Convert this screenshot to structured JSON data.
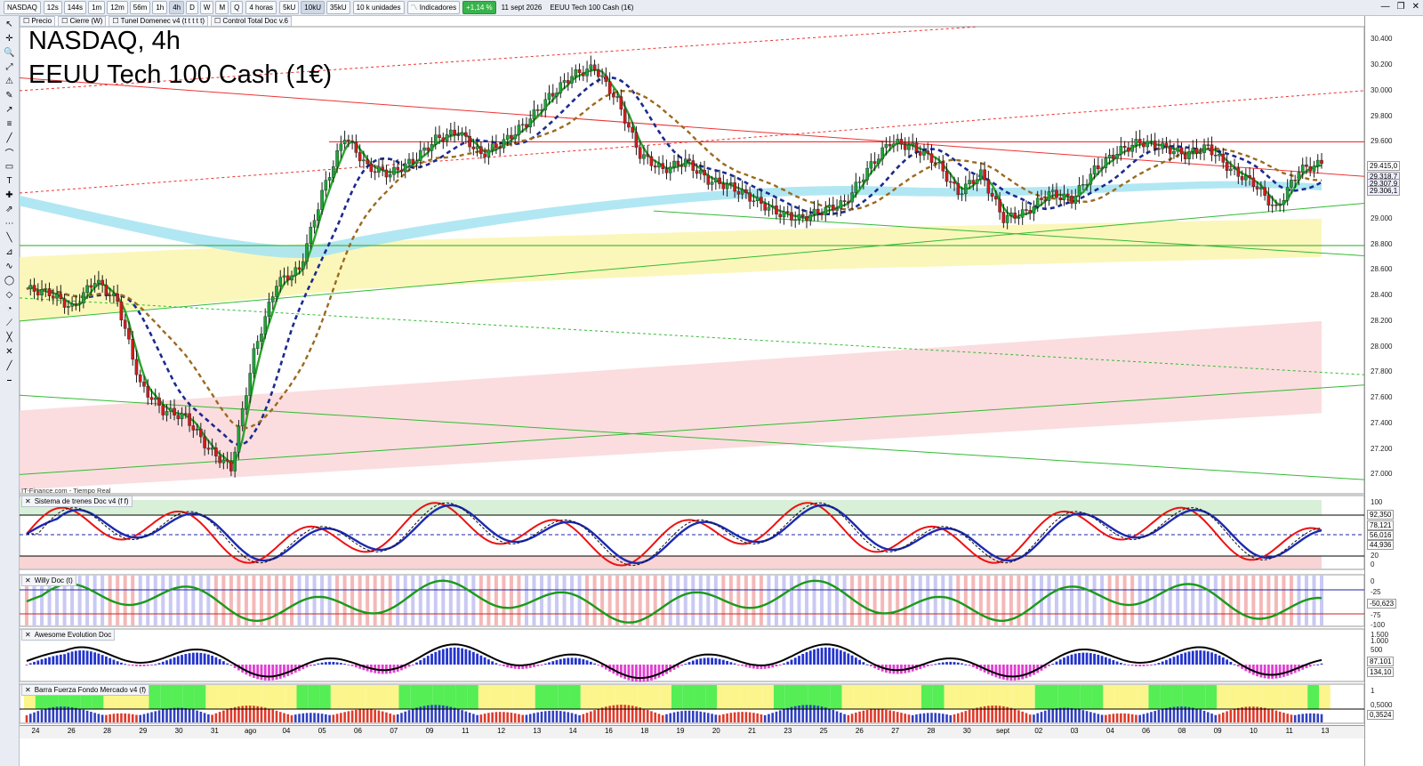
{
  "toolbar": {
    "symbol": "NASDAQ",
    "timeframes": [
      "12s",
      "144s",
      "1m",
      "12m",
      "56m",
      "1h",
      "4h",
      "D",
      "W",
      "M",
      "Q"
    ],
    "active_timeframe": "4h",
    "period": "4 horas",
    "volumes": [
      "5kU",
      "10kU",
      "35kU"
    ],
    "volume_active": "10kU",
    "units": "10 k unidades",
    "indicators_label": "Indicadores",
    "change_badge": "+1,14 %",
    "date": "11 sept 2026",
    "instrument": "EEUU Tech 100 Cash (1€)"
  },
  "legend": [
    "Precio",
    "Cierre (W)",
    "Tunel Domenec v4 (t t t t t)",
    "Control Total Doc v.6"
  ],
  "title_line1": "NASDAQ, 4h",
  "title_line2": "EEUU Tech 100 Cash (1€)",
  "credit": "IT-Finance.com - Tiempo Real",
  "panes": {
    "trenes": "Sistema de trenes Doc v4 (f f)",
    "willy": "Willy Doc (t)",
    "awesome": "Awesome Evolution Doc",
    "barra": "Barra Fuerza Fondo Mercado v4 (f)"
  },
  "price_ticks": [
    "30.400",
    "30.200",
    "30.000",
    "29.800",
    "29.600",
    "29.400",
    "29.200",
    "29.000",
    "28.800",
    "28.600",
    "28.400",
    "28.200",
    "28.000",
    "27.800",
    "27.600",
    "27.400",
    "27.200",
    "27.000"
  ],
  "price_tags": [
    "29.415,0",
    "29.318,7",
    "29.307,9",
    "29.306,1"
  ],
  "trenes_ticks": [
    "100",
    "80",
    "20",
    "0"
  ],
  "trenes_tags": [
    "92,350",
    "78,121",
    "56,016",
    "44,936"
  ],
  "willy_ticks": [
    "0",
    "-25",
    "-75",
    "-100"
  ],
  "willy_tags": [
    "-50,623"
  ],
  "awesome_ticks": [
    "1.500",
    "1.000",
    "500"
  ],
  "awesome_tags": [
    "87,101",
    "134,10"
  ],
  "barra_ticks": [
    "1",
    "0,5000"
  ],
  "barra_tags": [
    "0,3524"
  ],
  "x_labels": [
    "24",
    "26",
    "28",
    "29",
    "30",
    "31",
    "ago",
    "04",
    "05",
    "06",
    "07",
    "09",
    "11",
    "12",
    "13",
    "14",
    "16",
    "18",
    "19",
    "20",
    "21",
    "23",
    "25",
    "26",
    "27",
    "28",
    "30",
    "sept",
    "02",
    "03",
    "04",
    "06",
    "08",
    "09",
    "10",
    "11",
    "13"
  ],
  "colors": {
    "up": "#1fa33a",
    "down": "#d11b1b",
    "ema_fast": "#2aa52a",
    "ema_slow_dash": "#1c2a8f",
    "brown_dash": "#9b6a1e",
    "cyan_band": "#a9e4f2",
    "yellow_band": "#fbf6b4",
    "pink_band": "#fbd9dc"
  },
  "chart_data": {
    "type": "candlestick",
    "title": "NASDAQ, 4h",
    "subtitle": "EEUU Tech 100 Cash (1€)",
    "xlabel": "",
    "ylabel": "",
    "ylim": [
      26850,
      30500
    ],
    "x": [
      "24",
      "26",
      "28",
      "29",
      "30",
      "31",
      "ago",
      "04",
      "05",
      "06",
      "07",
      "09",
      "11",
      "12",
      "13",
      "14",
      "16",
      "18",
      "19",
      "20",
      "21",
      "23",
      "25",
      "26",
      "27",
      "28",
      "30",
      "sept",
      "02",
      "03",
      "04",
      "06",
      "08",
      "09",
      "10",
      "11",
      "13"
    ],
    "close_path": [
      28450,
      28420,
      28300,
      28520,
      28350,
      27700,
      27500,
      27450,
      27200,
      27050,
      27950,
      28500,
      28600,
      29200,
      29650,
      29400,
      29350,
      29450,
      29620,
      29680,
      29500,
      29600,
      29750,
      29950,
      30120,
      30180,
      29920,
      29500,
      29380,
      29450,
      29300,
      29250,
      29150,
      29050,
      29000,
      29060,
      29120,
      29380,
      29600,
      29560,
      29450,
      29200,
      29350,
      29000,
      29050,
      29200,
      29150,
      29380,
      29520,
      29600,
      29560,
      29500,
      29560,
      29380,
      29280,
      29070,
      29380,
      29430
    ]
  }
}
